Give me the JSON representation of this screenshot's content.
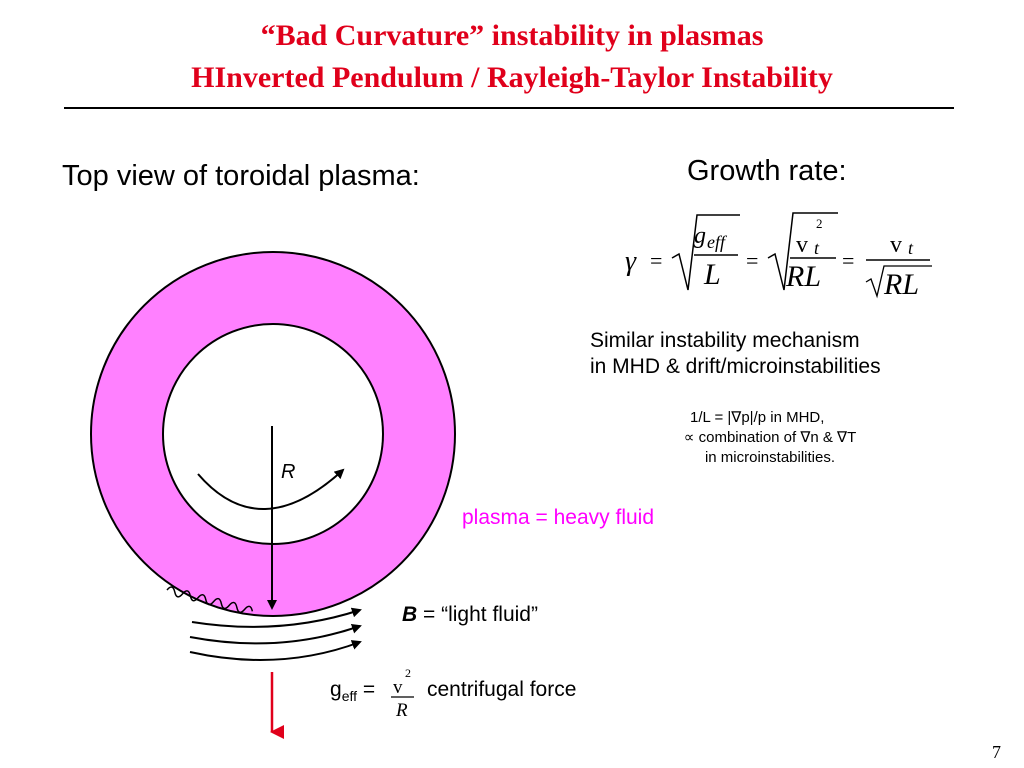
{
  "title": {
    "line1": "“Bad Curvature” instability in plasmas",
    "line2": "ΗInverted Pendulum / Rayleigh-Taylor Instability"
  },
  "left": {
    "heading": "Top view of toroidal plasma:",
    "radius_label": "R",
    "heavy_fluid_label": "plasma = heavy fluid",
    "light_fluid": {
      "symbol": "B",
      "text": " = “light fluid”"
    },
    "geff": {
      "symbol": "g",
      "subscript": "eff",
      "equals": " =",
      "frac_num": "v",
      "frac_exp": "2",
      "frac_den": "R",
      "text": "centrifugal force"
    }
  },
  "right": {
    "growth_heading": "Growth rate:",
    "formula": {
      "gamma": "γ",
      "eq": "=",
      "g": "g",
      "eff": "eff",
      "L": "L",
      "v": "v",
      "t": "t",
      "exp": "2",
      "RL": "RL"
    },
    "similar_line1": "Similar instability mechanism",
    "similar_line2": "in MHD & drift/microinstabilities",
    "note_line1": "1/L = |∇p|/p in MHD,",
    "note_line2": "∝ combination of ∇n & ∇T",
    "note_line3": "in microinstabilities."
  },
  "page_number": "7",
  "colors": {
    "title": "#e0001b",
    "torus": "#ff80ff",
    "heavy_label": "#ff00ff",
    "arrow": "#e0001b"
  }
}
